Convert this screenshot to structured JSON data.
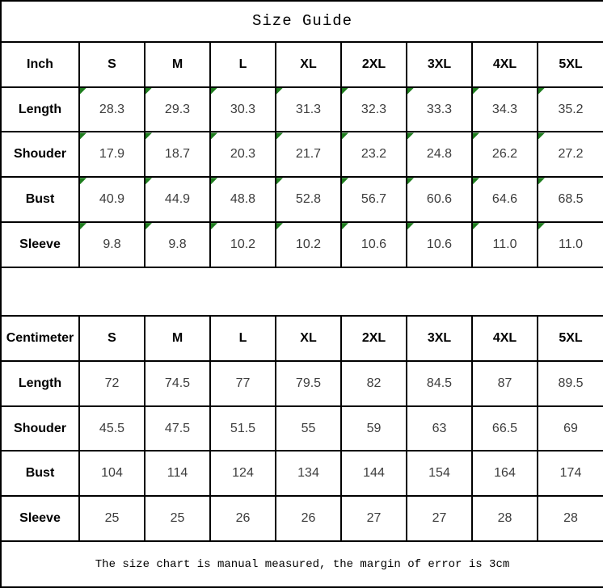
{
  "title": "Size Guide",
  "footer_note": "The size chart is manual measured, the margin of error is 3cm",
  "columns": [
    "S",
    "M",
    "L",
    "XL",
    "2XL",
    "3XL",
    "4XL",
    "5XL"
  ],
  "sections": [
    {
      "unit_label": "Inch",
      "comment_markers": true,
      "rows": [
        {
          "label": "Length",
          "values": [
            "28.3",
            "29.3",
            "30.3",
            "31.3",
            "32.3",
            "33.3",
            "34.3",
            "35.2"
          ]
        },
        {
          "label": "Shouder",
          "values": [
            "17.9",
            "18.7",
            "20.3",
            "21.7",
            "23.2",
            "24.8",
            "26.2",
            "27.2"
          ]
        },
        {
          "label": "Bust",
          "values": [
            "40.9",
            "44.9",
            "48.8",
            "52.8",
            "56.7",
            "60.6",
            "64.6",
            "68.5"
          ]
        },
        {
          "label": "Sleeve",
          "values": [
            "9.8",
            "9.8",
            "10.2",
            "10.2",
            "10.6",
            "10.6",
            "11.0",
            "11.0"
          ]
        }
      ]
    },
    {
      "unit_label": "Centimeter",
      "comment_markers": false,
      "rows": [
        {
          "label": "Length",
          "values": [
            "72",
            "74.5",
            "77",
            "79.5",
            "82",
            "84.5",
            "87",
            "89.5"
          ]
        },
        {
          "label": "Shouder",
          "values": [
            "45.5",
            "47.5",
            "51.5",
            "55",
            "59",
            "63",
            "66.5",
            "69"
          ]
        },
        {
          "label": "Bust",
          "values": [
            "104",
            "114",
            "124",
            "134",
            "144",
            "154",
            "164",
            "174"
          ]
        },
        {
          "label": "Sleeve",
          "values": [
            "25",
            "25",
            "26",
            "26",
            "27",
            "27",
            "28",
            "28"
          ]
        }
      ]
    }
  ],
  "colors": {
    "background": "#ffffff",
    "border": "#000000",
    "label_text": "#000000",
    "value_text": "#3d3d3d",
    "comment_marker_green": "#1f7d1f"
  },
  "chart_data": [
    {
      "type": "table",
      "title": "Size Guide",
      "unit": "Inch",
      "columns": [
        "Inch",
        "S",
        "M",
        "L",
        "XL",
        "2XL",
        "3XL",
        "4XL",
        "5XL"
      ],
      "rows": [
        [
          "Length",
          28.3,
          29.3,
          30.3,
          31.3,
          32.3,
          33.3,
          34.3,
          35.2
        ],
        [
          "Shouder",
          17.9,
          18.7,
          20.3,
          21.7,
          23.2,
          24.8,
          26.2,
          27.2
        ],
        [
          "Bust",
          40.9,
          44.9,
          48.8,
          52.8,
          56.7,
          60.6,
          64.6,
          68.5
        ],
        [
          "Sleeve",
          9.8,
          9.8,
          10.2,
          10.2,
          10.6,
          10.6,
          11.0,
          11.0
        ]
      ]
    },
    {
      "type": "table",
      "title": "Size Guide",
      "unit": "Centimeter",
      "columns": [
        "Centimeter",
        "S",
        "M",
        "L",
        "XL",
        "2XL",
        "3XL",
        "4XL",
        "5XL"
      ],
      "rows": [
        [
          "Length",
          72,
          74.5,
          77,
          79.5,
          82,
          84.5,
          87,
          89.5
        ],
        [
          "Shouder",
          45.5,
          47.5,
          51.5,
          55,
          59,
          63,
          66.5,
          69
        ],
        [
          "Bust",
          104,
          114,
          124,
          134,
          144,
          154,
          164,
          174
        ],
        [
          "Sleeve",
          25,
          25,
          26,
          26,
          27,
          27,
          28,
          28
        ]
      ],
      "note": "The size chart is manual measured, the margin of error is 3cm"
    }
  ]
}
